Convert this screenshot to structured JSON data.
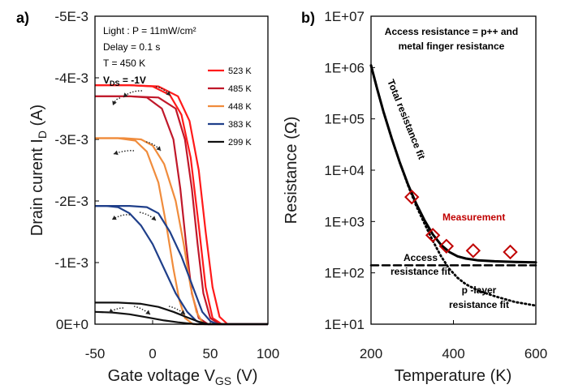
{
  "chart_data": [
    {
      "panel_label": "a)",
      "type": "line",
      "xlabel": "Gate voltage V",
      "xlabel_sub": "GS",
      "xlabel_unit": "(V)",
      "ylabel": "Drain curent I",
      "ylabel_sub": "D",
      "ylabel_unit": "(A)",
      "xlim": [
        -50,
        100
      ],
      "ylim": [
        0,
        -0.005
      ],
      "x_ticks": [
        "-50",
        "0",
        "50",
        "100"
      ],
      "x_tick_values": [
        -50,
        0,
        50,
        100
      ],
      "y_ticks": [
        "0E+0",
        "-1E-3",
        "-2E-3",
        "-3E-3",
        "-4E-3",
        "-5E-3"
      ],
      "y_tick_values": [
        0,
        -0.001,
        -0.002,
        -0.003,
        -0.004,
        -0.005
      ],
      "info_lines": [
        "Light : P = 11mW/cm²",
        "Delay = 0.1 s",
        "T = 450 K"
      ],
      "vds_label": "V",
      "vds_sub": "DS",
      "vds_value": " = -1V",
      "legend_position": "top-right",
      "series": [
        {
          "name": "523 K",
          "color": "#ff1a1a",
          "forward": [
            [
              -50,
              -0.00388
            ],
            [
              -20,
              -0.00388
            ],
            [
              0,
              -0.00386
            ],
            [
              15,
              -0.00372
            ],
            [
              25,
              -0.0034
            ],
            [
              33,
              -0.0027
            ],
            [
              40,
              -0.0016
            ],
            [
              46,
              -0.0006
            ],
            [
              52,
              -0.0001
            ],
            [
              60,
              0
            ],
            [
              100,
              0
            ]
          ],
          "reverse": [
            [
              -50,
              -0.00388
            ],
            [
              -20,
              -0.00388
            ],
            [
              5,
              -0.00386
            ],
            [
              22,
              -0.0037
            ],
            [
              32,
              -0.0033
            ],
            [
              40,
              -0.0025
            ],
            [
              46,
              -0.0015
            ],
            [
              52,
              -0.0006
            ],
            [
              58,
              -0.00012
            ],
            [
              65,
              0
            ],
            [
              100,
              0
            ]
          ]
        },
        {
          "name": "485 K",
          "color": "#c0182a",
          "forward": [
            [
              -50,
              -0.0037
            ],
            [
              -20,
              -0.0037
            ],
            [
              -5,
              -0.00368
            ],
            [
              8,
              -0.0035
            ],
            [
              18,
              -0.003
            ],
            [
              24,
              -0.0022
            ],
            [
              29,
              -0.0013
            ],
            [
              34,
              -0.0005
            ],
            [
              40,
              -0.0001
            ],
            [
              48,
              0
            ],
            [
              100,
              0
            ]
          ],
          "reverse": [
            [
              -50,
              -0.0037
            ],
            [
              -20,
              -0.0037
            ],
            [
              5,
              -0.00368
            ],
            [
              20,
              -0.0035
            ],
            [
              28,
              -0.003
            ],
            [
              34,
              -0.0022
            ],
            [
              39,
              -0.0013
            ],
            [
              44,
              -0.0005
            ],
            [
              50,
              -0.0001
            ],
            [
              58,
              0
            ],
            [
              100,
              0
            ]
          ]
        },
        {
          "name": "448 K",
          "color": "#f08c3c",
          "forward": [
            [
              -50,
              -0.00302
            ],
            [
              -30,
              -0.00302
            ],
            [
              -15,
              -0.00298
            ],
            [
              -5,
              -0.0028
            ],
            [
              5,
              -0.0023
            ],
            [
              12,
              -0.0016
            ],
            [
              18,
              -0.0009
            ],
            [
              23,
              -0.0004
            ],
            [
              28,
              -0.0001
            ],
            [
              35,
              0
            ],
            [
              100,
              0
            ]
          ],
          "reverse": [
            [
              -50,
              -0.00302
            ],
            [
              -25,
              -0.00302
            ],
            [
              -10,
              -0.003
            ],
            [
              0,
              -0.0029
            ],
            [
              10,
              -0.0026
            ],
            [
              20,
              -0.002
            ],
            [
              27,
              -0.0013
            ],
            [
              33,
              -0.0006
            ],
            [
              38,
              -0.0002
            ],
            [
              44,
              0
            ],
            [
              100,
              0
            ]
          ]
        },
        {
          "name": "383 K",
          "color": "#1f3f8a",
          "forward": [
            [
              -50,
              -0.00192
            ],
            [
              -40,
              -0.00192
            ],
            [
              -30,
              -0.0019
            ],
            [
              -20,
              -0.0018
            ],
            [
              -10,
              -0.0016
            ],
            [
              0,
              -0.0013
            ],
            [
              10,
              -0.0009
            ],
            [
              20,
              -0.0005
            ],
            [
              30,
              -0.0002
            ],
            [
              38,
              -5e-05
            ],
            [
              45,
              0
            ],
            [
              100,
              0
            ]
          ],
          "reverse": [
            [
              -50,
              -0.00192
            ],
            [
              -20,
              -0.00192
            ],
            [
              -5,
              -0.0019
            ],
            [
              5,
              -0.0018
            ],
            [
              15,
              -0.0015
            ],
            [
              25,
              -0.0011
            ],
            [
              35,
              -0.0006
            ],
            [
              43,
              -0.0002
            ],
            [
              50,
              -5e-05
            ],
            [
              56,
              0
            ],
            [
              100,
              0
            ]
          ]
        },
        {
          "name": "299 K",
          "color": "#111111",
          "forward": [
            [
              -50,
              -0.0002
            ],
            [
              -35,
              -0.00019
            ],
            [
              -20,
              -0.00016
            ],
            [
              -5,
              -0.00011
            ],
            [
              10,
              -6e-05
            ],
            [
              22,
              -3e-05
            ],
            [
              32,
              -1e-05
            ],
            [
              38,
              0
            ],
            [
              100,
              0
            ]
          ],
          "reverse": [
            [
              -50,
              -0.00035
            ],
            [
              -30,
              -0.00035
            ],
            [
              -10,
              -0.00033
            ],
            [
              5,
              -0.00028
            ],
            [
              18,
              -0.0002
            ],
            [
              30,
              -0.00011
            ],
            [
              40,
              -4e-05
            ],
            [
              48,
              0
            ],
            [
              100,
              0
            ]
          ]
        }
      ]
    },
    {
      "panel_label": "b)",
      "type": "line",
      "xlabel": "Temperature (K)",
      "ylabel": "Resistance (Ω)",
      "xlim": [
        200,
        600
      ],
      "ylim": [
        10,
        10000000
      ],
      "yscale": "log",
      "x_ticks": [
        "200",
        "400",
        "600"
      ],
      "x_tick_values": [
        200,
        400,
        600
      ],
      "y_ticks": [
        "1E+01",
        "1E+02",
        "1E+03",
        "1E+04",
        "1E+05",
        "1E+06",
        "1E+07"
      ],
      "y_tick_values": [
        10,
        100,
        1000,
        10000,
        100000,
        1000000,
        10000000
      ],
      "title_lines": [
        "Access resistance = p++ and",
        "metal finger resistance"
      ],
      "annotations": {
        "total": "Total resistance fit",
        "measurement": "Measurement",
        "access": [
          "Access",
          "resistance fit"
        ],
        "player": [
          "p -layer",
          "resistance fit"
        ]
      },
      "measurement_color": "#c00000",
      "series": [
        {
          "name": "Total resistance fit",
          "style": "solid",
          "x": [
            200,
            215,
            230,
            250,
            270,
            290,
            310,
            330,
            350,
            370,
            390,
            410,
            430,
            460,
            500,
            550,
            600
          ],
          "y": [
            1100000,
            380000,
            140000,
            42000,
            14000,
            5200,
            2200,
            1050,
            560,
            350,
            255,
            210,
            190,
            175,
            168,
            163,
            160
          ]
        },
        {
          "name": "Access resistance fit",
          "style": "dashed",
          "x": [
            200,
            600
          ],
          "y": [
            140,
            140
          ]
        },
        {
          "name": "p -layer resistance fit",
          "style": "dotted",
          "x": [
            200,
            215,
            230,
            250,
            270,
            290,
            310,
            330,
            350,
            370,
            390,
            410,
            430,
            460,
            500,
            550,
            600
          ],
          "y": [
            1100000,
            380000,
            140000,
            42000,
            14000,
            5000,
            2000,
            900,
            420,
            210,
            120,
            80,
            60,
            45,
            35,
            27,
            23
          ]
        },
        {
          "name": "Measurement",
          "style": "markers",
          "x": [
            299,
            350,
            383,
            448,
            538
          ],
          "y": [
            3000,
            540,
            330,
            270,
            255
          ]
        }
      ]
    }
  ]
}
